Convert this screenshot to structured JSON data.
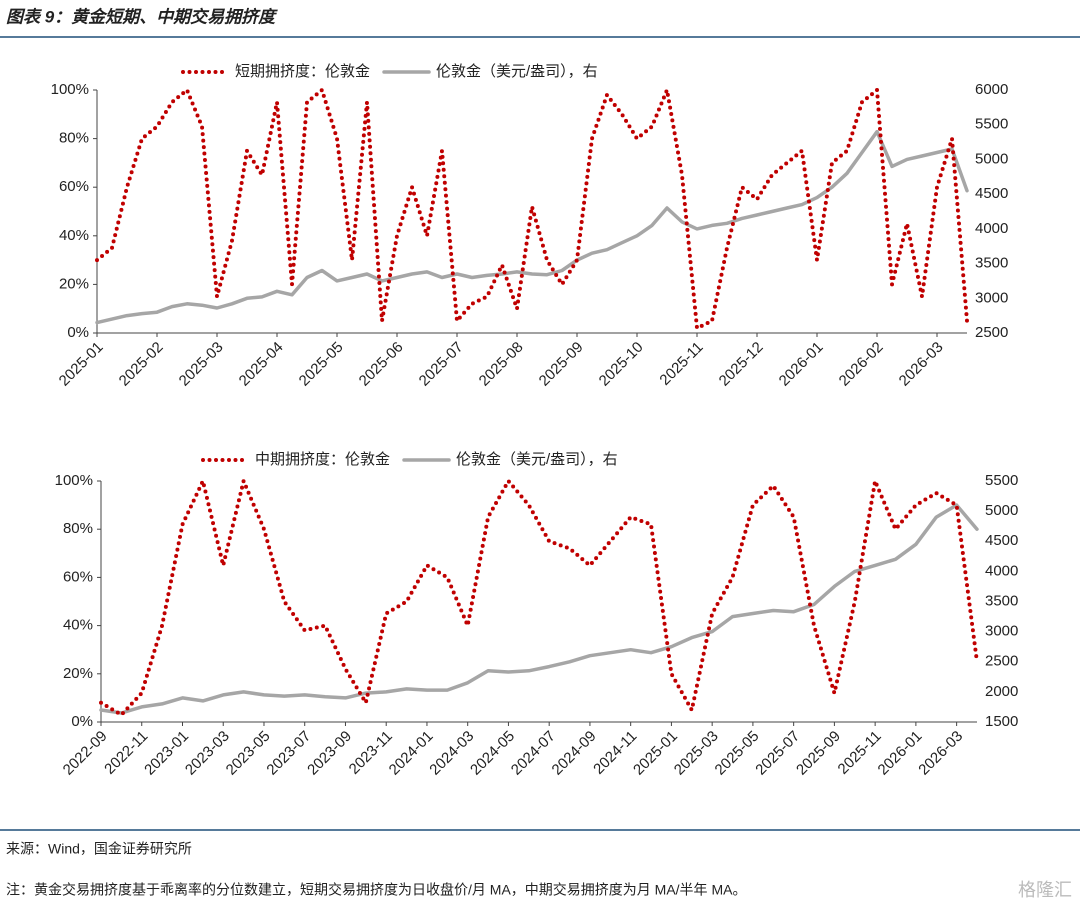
{
  "header": {
    "title": "图表 9：黄金短期、中期交易拥挤度"
  },
  "footer": {
    "source": "来源：Wind，国金证券研究所",
    "note": "注：黄金交易拥挤度基于乖离率的分位数建立，短期交易拥挤度为日收盘价/月 MA，中期交易拥挤度为月 MA/半年 MA。"
  },
  "watermark": "格隆汇",
  "chart_data": [
    {
      "type": "line",
      "categories": [
        "2025-01",
        null,
        null,
        null,
        "2025-02",
        null,
        null,
        null,
        "2025-03",
        null,
        null,
        null,
        "2025-04",
        null,
        null,
        null,
        "2025-05",
        null,
        null,
        null,
        "2025-06",
        null,
        null,
        null,
        "2025-07",
        null,
        null,
        null,
        "2025-08",
        null,
        null,
        null,
        "2025-09",
        null,
        null,
        null,
        "2025-10",
        null,
        null,
        null,
        "2025-11",
        null,
        null,
        null,
        "2025-12",
        null,
        null,
        null,
        "2026-01",
        null,
        null,
        null,
        "2026-02",
        null,
        null,
        null,
        "2026-03",
        null,
        null
      ],
      "series": [
        {
          "name": "短期拥挤度：伦敦金",
          "color": "#c00000",
          "style": "dotted",
          "values": [
            30,
            35,
            60,
            80,
            85,
            95,
            100,
            85,
            15,
            38,
            75,
            65,
            95,
            20,
            95,
            100,
            80,
            30,
            95,
            5,
            40,
            60,
            40,
            75,
            5,
            12,
            15,
            28,
            10,
            52,
            30,
            20,
            30,
            80,
            98,
            90,
            80,
            85,
            100,
            65,
            2,
            5,
            35,
            60,
            55,
            65,
            70,
            75,
            30,
            70,
            75,
            95,
            100,
            20,
            45,
            15,
            60,
            80,
            5
          ]
        },
        {
          "name": "伦敦金（美元/盎司），右",
          "color": "#a6a6a6",
          "style": "solid",
          "axis": "y2",
          "values": [
            2650,
            2700,
            2750,
            2780,
            2800,
            2880,
            2920,
            2900,
            2860,
            2920,
            3000,
            3020,
            3100,
            3050,
            3300,
            3400,
            3250,
            3300,
            3350,
            3250,
            3300,
            3350,
            3380,
            3300,
            3350,
            3300,
            3330,
            3350,
            3380,
            3350,
            3340,
            3400,
            3550,
            3650,
            3700,
            3800,
            3900,
            4050,
            4300,
            4100,
            4000,
            4050,
            4080,
            4150,
            4200,
            4250,
            4300,
            4350,
            4450,
            4600,
            4800,
            5100,
            5400,
            4900,
            5000,
            5050,
            5100,
            5150,
            4550
          ]
        }
      ],
      "ylim": [
        0,
        100
      ],
      "yticks": [
        {
          "value": 0,
          "label": "0%"
        },
        {
          "value": 20,
          "label": "20%"
        },
        {
          "value": 40,
          "label": "40%"
        },
        {
          "value": 60,
          "label": "60%"
        },
        {
          "value": 80,
          "label": "80%"
        },
        {
          "value": 100,
          "label": "100%"
        }
      ],
      "y2lim": [
        2500,
        6000
      ],
      "y2ticks": [
        2500,
        3000,
        3500,
        4000,
        4500,
        5000,
        5500,
        6000
      ]
    },
    {
      "type": "line",
      "categories": [
        "2022-09",
        null,
        "2022-11",
        null,
        "2023-01",
        null,
        "2023-03",
        null,
        "2023-05",
        null,
        "2023-07",
        null,
        "2023-09",
        null,
        "2023-11",
        null,
        "2024-01",
        null,
        "2024-03",
        null,
        "2024-05",
        null,
        "2024-07",
        null,
        "2024-09",
        null,
        "2024-11",
        null,
        "2025-01",
        null,
        "2025-03",
        null,
        "2025-05",
        null,
        "2025-07",
        null,
        "2025-09",
        null,
        "2025-11",
        null,
        "2026-01",
        null,
        "2026-03",
        null
      ],
      "series": [
        {
          "name": "中期拥挤度：伦敦金",
          "color": "#c00000",
          "style": "dotted",
          "values": [
            8,
            3,
            12,
            40,
            82,
            100,
            65,
            100,
            80,
            50,
            38,
            40,
            22,
            8,
            45,
            50,
            65,
            60,
            40,
            85,
            100,
            90,
            75,
            72,
            65,
            75,
            85,
            82,
            20,
            5,
            45,
            60,
            90,
            98,
            85,
            40,
            12,
            50,
            100,
            80,
            90,
            95,
            90,
            25
          ]
        },
        {
          "name": "伦敦金（美元/盎司），右",
          "color": "#a6a6a6",
          "style": "solid",
          "axis": "y2",
          "values": [
            1700,
            1650,
            1750,
            1800,
            1900,
            1850,
            1950,
            2000,
            1950,
            1930,
            1950,
            1920,
            1900,
            1980,
            2000,
            2050,
            2030,
            2030,
            2150,
            2350,
            2330,
            2350,
            2420,
            2500,
            2600,
            2650,
            2700,
            2650,
            2750,
            2900,
            3000,
            3250,
            3300,
            3350,
            3330,
            3450,
            3750,
            4000,
            4100,
            4200,
            4450,
            4900,
            5100,
            4700
          ]
        }
      ],
      "ylim": [
        0,
        100
      ],
      "yticks": [
        {
          "value": 0,
          "label": "0%"
        },
        {
          "value": 20,
          "label": "20%"
        },
        {
          "value": 40,
          "label": "40%"
        },
        {
          "value": 60,
          "label": "60%"
        },
        {
          "value": 80,
          "label": "80%"
        },
        {
          "value": 100,
          "label": "100%"
        }
      ],
      "y2lim": [
        1500,
        5500
      ],
      "y2ticks": [
        1500,
        2000,
        2500,
        3000,
        3500,
        4000,
        4500,
        5000,
        5500
      ]
    }
  ]
}
